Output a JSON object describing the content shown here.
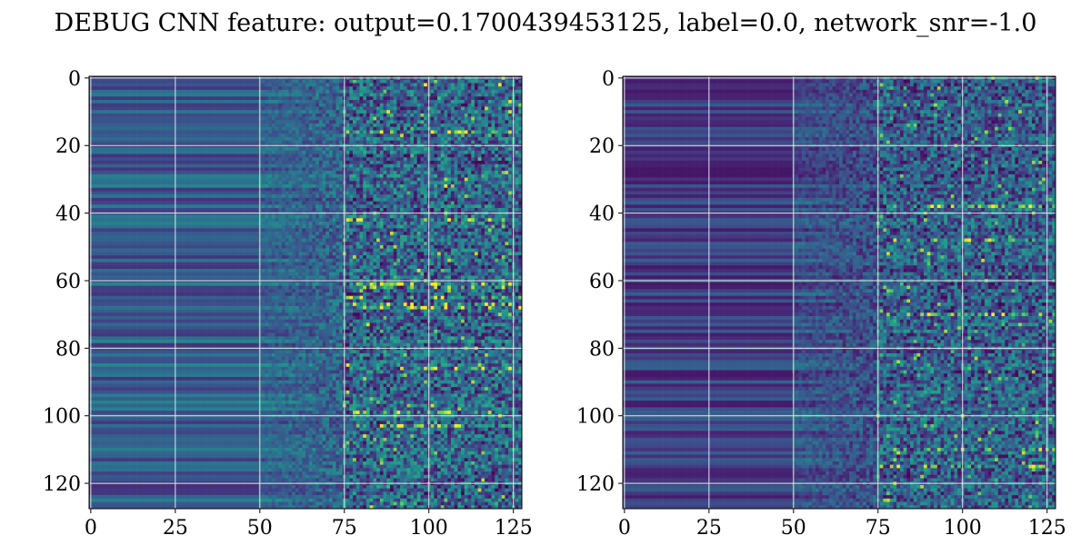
{
  "figure": {
    "title": "DEBUG CNN feature: output=0.1700439453125, label=0.0, network_snr=-1.0"
  },
  "colormap": "viridis",
  "chart_data": [
    {
      "type": "heatmap",
      "name": "panel-1",
      "title": "",
      "xlabel": "",
      "ylabel": "",
      "rows": 128,
      "cols": 128,
      "xlim": [
        0,
        127
      ],
      "ylim": [
        127,
        0
      ],
      "xticks": [
        0,
        25,
        50,
        75,
        100,
        125
      ],
      "yticks": [
        0,
        20,
        40,
        60,
        80,
        100,
        120
      ],
      "grid": true,
      "description_values": "low uniform horizontal bands for x<50, noisy higher values for x>75, bright streaks near rows 60-68 and 100-103"
    },
    {
      "type": "heatmap",
      "name": "panel-2",
      "title": "",
      "xlabel": "",
      "ylabel": "",
      "rows": 128,
      "cols": 128,
      "xlim": [
        0,
        127
      ],
      "ylim": [
        127,
        0
      ],
      "xticks": [
        0,
        25,
        50,
        75,
        100,
        125
      ],
      "yticks": [
        0,
        20,
        40,
        60,
        80,
        100,
        120
      ],
      "grid": true,
      "description_values": "darker banded left half, speckled noise x>75 with a bright streak near row 115"
    }
  ]
}
